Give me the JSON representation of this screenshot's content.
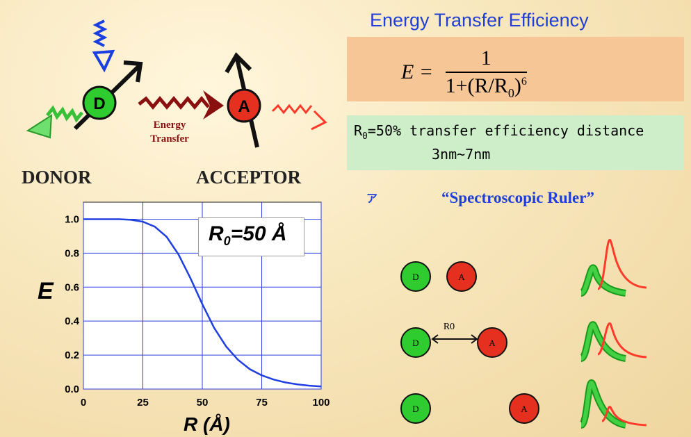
{
  "header": {
    "efficiency_title": "Energy Transfer Efficiency",
    "formula_lhs": "E =",
    "formula_num": "1",
    "formula_den_prefix": "1+(R/R",
    "formula_den_sub": "0",
    "formula_den_suffix": ")",
    "formula_den_exp": "6"
  },
  "r0_info": {
    "line1_prefix": "R",
    "line1_sub": "0",
    "line1_suffix": "=50% transfer efficiency distance",
    "line2": "3nm~7nm"
  },
  "diagram": {
    "donor_letter": "D",
    "acceptor_letter": "A",
    "transfer_label_line1": "Energy",
    "transfer_label_line2": "Transfer",
    "donor_label": "DONOR",
    "acceptor_label": "ACCEPTOR",
    "colors": {
      "donor": "#2ecc2e",
      "acceptor": "#e53020",
      "transfer": "#8a1010",
      "excite": "#1a3fe0",
      "emit": "#ff3a2a"
    }
  },
  "ruler": {
    "title": "“Spectroscopic Ruler”",
    "mark": "ア",
    "d_letter": "D",
    "a_letter": "A",
    "r0_label": "R0"
  },
  "chart_data": {
    "type": "line",
    "title": "",
    "xlabel": "R (Å)",
    "ylabel": "E",
    "xlim": [
      0,
      100
    ],
    "ylim": [
      0,
      1.1
    ],
    "xticks": [
      "0",
      "25",
      "50",
      "75",
      "100"
    ],
    "yticks": [
      "0.0",
      "0.2",
      "0.4",
      "0.6",
      "0.8",
      "1.0"
    ],
    "grid": true,
    "legend_text": "R0=50 Å",
    "legend_main": "R",
    "legend_sub": "0",
    "legend_suffix": "=50 Å",
    "series": [
      {
        "color": "#1f3fe0",
        "x": [
          0,
          5,
          10,
          15,
          20,
          25,
          30,
          35,
          40,
          45,
          50,
          55,
          60,
          65,
          70,
          75,
          80,
          85,
          90,
          95,
          100
        ],
        "y": [
          1.0,
          1.0,
          1.0,
          1.0,
          0.996,
          0.985,
          0.956,
          0.896,
          0.792,
          0.653,
          0.5,
          0.36,
          0.251,
          0.172,
          0.117,
          0.081,
          0.056,
          0.039,
          0.028,
          0.02,
          0.015
        ]
      }
    ]
  }
}
